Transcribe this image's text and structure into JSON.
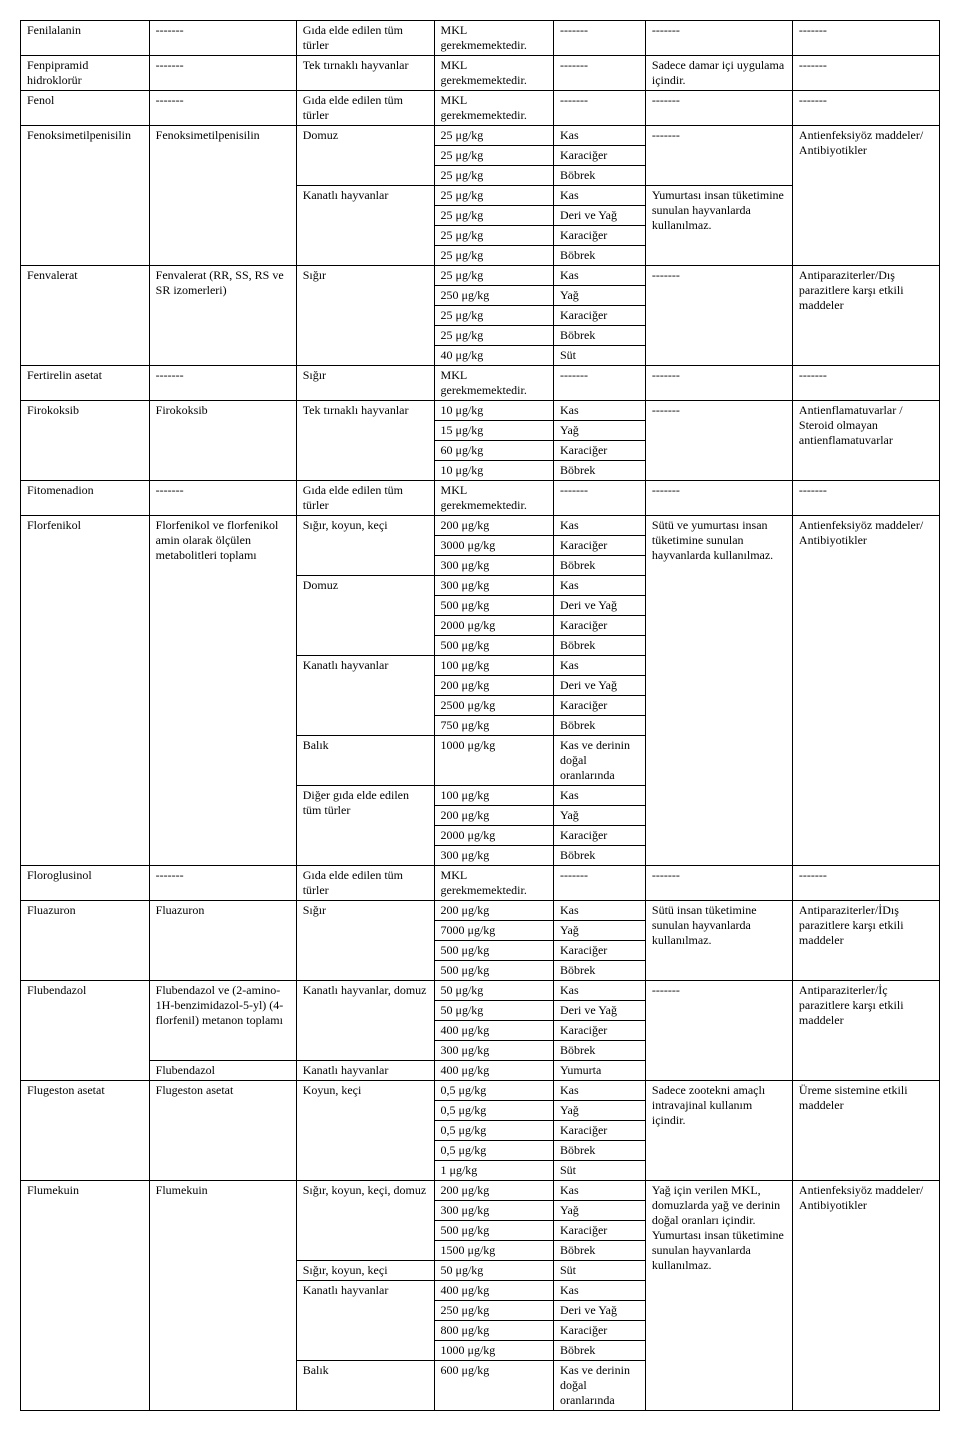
{
  "table": {
    "rows": [
      {
        "c": [
          "Fenilalanin",
          "-------",
          "Gıda elde edilen tüm türler",
          "MKL gerekmemektedir.",
          "-------",
          "-------",
          "-------"
        ]
      },
      {
        "c": [
          "Fenpipramid hidroklorür",
          "-------",
          "Tek tırnaklı hayvanlar",
          "MKL gerekmemektedir.",
          "-------",
          "Sadece damar içi uygulama içindir.",
          "-------"
        ]
      },
      {
        "c": [
          "Fenol",
          "-------",
          "Gıda elde edilen tüm türler",
          "MKL gerekmemektedir.",
          "-------",
          "-------",
          "-------"
        ]
      },
      {
        "c": [
          "Fenoksimetilpenisilin",
          "Fenoksimetilpenisilin",
          "Domuz",
          "25 μg/kg",
          "Kas",
          "-------",
          "Antienfeksiyöz maddeler/ Antibiyotikler"
        ],
        "rs": {
          "0": 7,
          "1": 7,
          "2": 3,
          "5": 3,
          "6": 7
        }
      },
      {
        "c": [
          "25 μg/kg",
          "Karaciğer"
        ]
      },
      {
        "c": [
          "25 μg/kg",
          "Böbrek"
        ]
      },
      {
        "c": [
          "Kanatlı hayvanlar",
          "25 μg/kg",
          "Kas",
          "Yumurtası insan tüketimine sunulan hayvanlarda kullanılmaz."
        ],
        "rs": {
          "0": 4,
          "3": 4
        }
      },
      {
        "c": [
          "25 μg/kg",
          "Deri ve Yağ"
        ]
      },
      {
        "c": [
          "25 μg/kg",
          "Karaciğer"
        ]
      },
      {
        "c": [
          "25 μg/kg",
          "Böbrek"
        ]
      },
      {
        "c": [
          "Fenvalerat",
          "Fenvalerat (RR, SS, RS ve SR izomerleri)",
          "Sığır",
          "25 μg/kg",
          "Kas",
          "-------",
          "Antiparaziterler/Dış parazitlere karşı etkili maddeler"
        ],
        "rs": {
          "0": 5,
          "1": 5,
          "2": 5,
          "5": 5,
          "6": 5
        }
      },
      {
        "c": [
          "250 μg/kg",
          "Yağ"
        ]
      },
      {
        "c": [
          "25 μg/kg",
          "Karaciğer"
        ]
      },
      {
        "c": [
          "25 μg/kg",
          "Böbrek"
        ]
      },
      {
        "c": [
          "40 μg/kg",
          "Süt"
        ]
      },
      {
        "c": [
          "Fertirelin asetat",
          "-------",
          "Sığır",
          "MKL gerekmemektedir.",
          "-------",
          "-------",
          "-------"
        ]
      },
      {
        "c": [
          "Firokoksib",
          "Firokoksib",
          "Tek tırnaklı hayvanlar",
          "10 μg/kg",
          "Kas",
          "-------",
          "Antienflamatuvarlar / Steroid olmayan antienflamatuvarlar"
        ],
        "rs": {
          "0": 4,
          "1": 4,
          "2": 4,
          "5": 4,
          "6": 4
        }
      },
      {
        "c": [
          "15 μg/kg",
          "Yağ"
        ]
      },
      {
        "c": [
          "60 μg/kg",
          "Karaciğer"
        ]
      },
      {
        "c": [
          "10 μg/kg",
          "Böbrek"
        ]
      },
      {
        "c": [
          "Fitomenadion",
          "-------",
          "Gıda elde edilen tüm türler",
          "MKL gerekmemektedir.",
          "-------",
          "-------",
          "-------"
        ]
      },
      {
        "c": [
          "Florfenikol",
          "Florfenikol ve florfenikol amin olarak ölçülen metabolitleri toplamı",
          "Sığır, koyun, keçi",
          "200 μg/kg",
          "Kas",
          "Sütü ve yumurtası insan tüketimine sunulan hayvanlarda kullanılmaz.",
          "Antienfeksiyöz maddeler/ Antibiyotikler"
        ],
        "rs": {
          "0": 16,
          "1": 16,
          "2": 3,
          "5": 16,
          "6": 16
        }
      },
      {
        "c": [
          "3000 μg/kg",
          "Karaciğer"
        ]
      },
      {
        "c": [
          "300 μg/kg",
          "Böbrek"
        ]
      },
      {
        "c": [
          "Domuz",
          "300 μg/kg",
          "Kas"
        ],
        "rs": {
          "0": 4
        }
      },
      {
        "c": [
          "500 μg/kg",
          "Deri ve Yağ"
        ]
      },
      {
        "c": [
          "2000 μg/kg",
          "Karaciğer"
        ]
      },
      {
        "c": [
          "500 μg/kg",
          "Böbrek"
        ]
      },
      {
        "c": [
          "Kanatlı hayvanlar",
          "100 μg/kg",
          "Kas"
        ],
        "rs": {
          "0": 4
        }
      },
      {
        "c": [
          "200 μg/kg",
          "Deri ve Yağ"
        ]
      },
      {
        "c": [
          "2500 μg/kg",
          "Karaciğer"
        ]
      },
      {
        "c": [
          "750 μg/kg",
          "Böbrek"
        ]
      },
      {
        "c": [
          "Balık",
          "1000 μg/kg",
          "Kas ve derinin doğal oranlarında"
        ]
      },
      {
        "c": [
          "Diğer gıda elde edilen tüm türler",
          "100 μg/kg",
          "Kas"
        ],
        "rs": {
          "0": 4
        }
      },
      {
        "c": [
          "200 μg/kg",
          "Yağ"
        ]
      },
      {
        "c": [
          "2000 μg/kg",
          "Karaciğer"
        ]
      },
      {
        "c": [
          "300 μg/kg",
          "Böbrek"
        ]
      },
      {
        "c": [
          "Floroglusinol",
          "-------",
          "Gıda elde edilen tüm türler",
          "MKL gerekmemektedir.",
          "-------",
          "-------",
          "-------"
        ]
      },
      {
        "c": [
          "Fluazuron",
          "Fluazuron",
          "Sığır",
          "200 μg/kg",
          "Kas",
          "Sütü insan tüketimine sunulan hayvanlarda kullanılmaz.",
          "Antiparaziterler/İDış parazitlere karşı etkili maddeler"
        ],
        "rs": {
          "0": 4,
          "1": 4,
          "2": 4,
          "5": 4,
          "6": 4
        }
      },
      {
        "c": [
          "7000 μg/kg",
          "Yağ"
        ]
      },
      {
        "c": [
          "500 μg/kg",
          "Karaciğer"
        ]
      },
      {
        "c": [
          "500 μg/kg",
          "Böbrek"
        ]
      },
      {
        "c": [
          "Flubendazol",
          "Flubendazol ve (2-amino-1H-benzimidazol-5-yl) (4-florfenil) metanon toplamı",
          "Kanatlı hayvanlar, domuz",
          "50 μg/kg",
          "Kas",
          "-------",
          "Antiparaziterler/İç parazitlere karşı etkili maddeler"
        ],
        "rs": {
          "0": 5,
          "1": 4,
          "2": 4,
          "5": 5,
          "6": 5
        }
      },
      {
        "c": [
          "50 μg/kg",
          "Deri ve Yağ"
        ]
      },
      {
        "c": [
          "400 μg/kg",
          "Karaciğer"
        ]
      },
      {
        "c": [
          "300 μg/kg",
          "Böbrek"
        ]
      },
      {
        "c": [
          "Flubendazol",
          "Kanatlı hayvanlar",
          "400 μg/kg",
          "Yumurta"
        ]
      },
      {
        "c": [
          "Flugeston asetat",
          "Flugeston asetat",
          "Koyun, keçi",
          "0,5 μg/kg",
          "Kas",
          "Sadece zootekni amaçlı intravajinal kullanım içindir.",
          "Üreme sistemine etkili maddeler"
        ],
        "rs": {
          "0": 5,
          "1": 5,
          "2": 5,
          "5": 5,
          "6": 5
        }
      },
      {
        "c": [
          "0,5 μg/kg",
          "Yağ"
        ]
      },
      {
        "c": [
          "0,5 μg/kg",
          "Karaciğer"
        ]
      },
      {
        "c": [
          "0,5 μg/kg",
          "Böbrek"
        ]
      },
      {
        "c": [
          "1 μg/kg",
          "Süt"
        ]
      },
      {
        "c": [
          "Flumekuin",
          "Flumekuin",
          "Sığır, koyun, keçi, domuz",
          "200 μg/kg",
          "Kas",
          "Yağ için verilen MKL, domuzlarda yağ ve derinin doğal oranları içindir. Yumurtası insan tüketimine sunulan hayvanlarda kullanılmaz.",
          "Antienfeksiyöz maddeler/ Antibiyotikler"
        ],
        "rs": {
          "0": 10,
          "1": 10,
          "2": 4,
          "5": 10,
          "6": 10
        }
      },
      {
        "c": [
          "300 μg/kg",
          "Yağ"
        ]
      },
      {
        "c": [
          "500 μg/kg",
          "Karaciğer"
        ]
      },
      {
        "c": [
          "1500 μg/kg",
          "Böbrek"
        ]
      },
      {
        "c": [
          "Sığır, koyun, keçi",
          "50 μg/kg",
          "Süt"
        ]
      },
      {
        "c": [
          "Kanatlı hayvanlar",
          "400 μg/kg",
          "Kas"
        ],
        "rs": {
          "0": 4
        }
      },
      {
        "c": [
          "250 μg/kg",
          "Deri ve Yağ"
        ]
      },
      {
        "c": [
          "800 μg/kg",
          "Karaciğer"
        ]
      },
      {
        "c": [
          "1000 μg/kg",
          "Böbrek"
        ]
      },
      {
        "c": [
          "Balık",
          "600 μg/kg",
          "Kas ve derinin doğal oranlarında"
        ]
      }
    ]
  }
}
